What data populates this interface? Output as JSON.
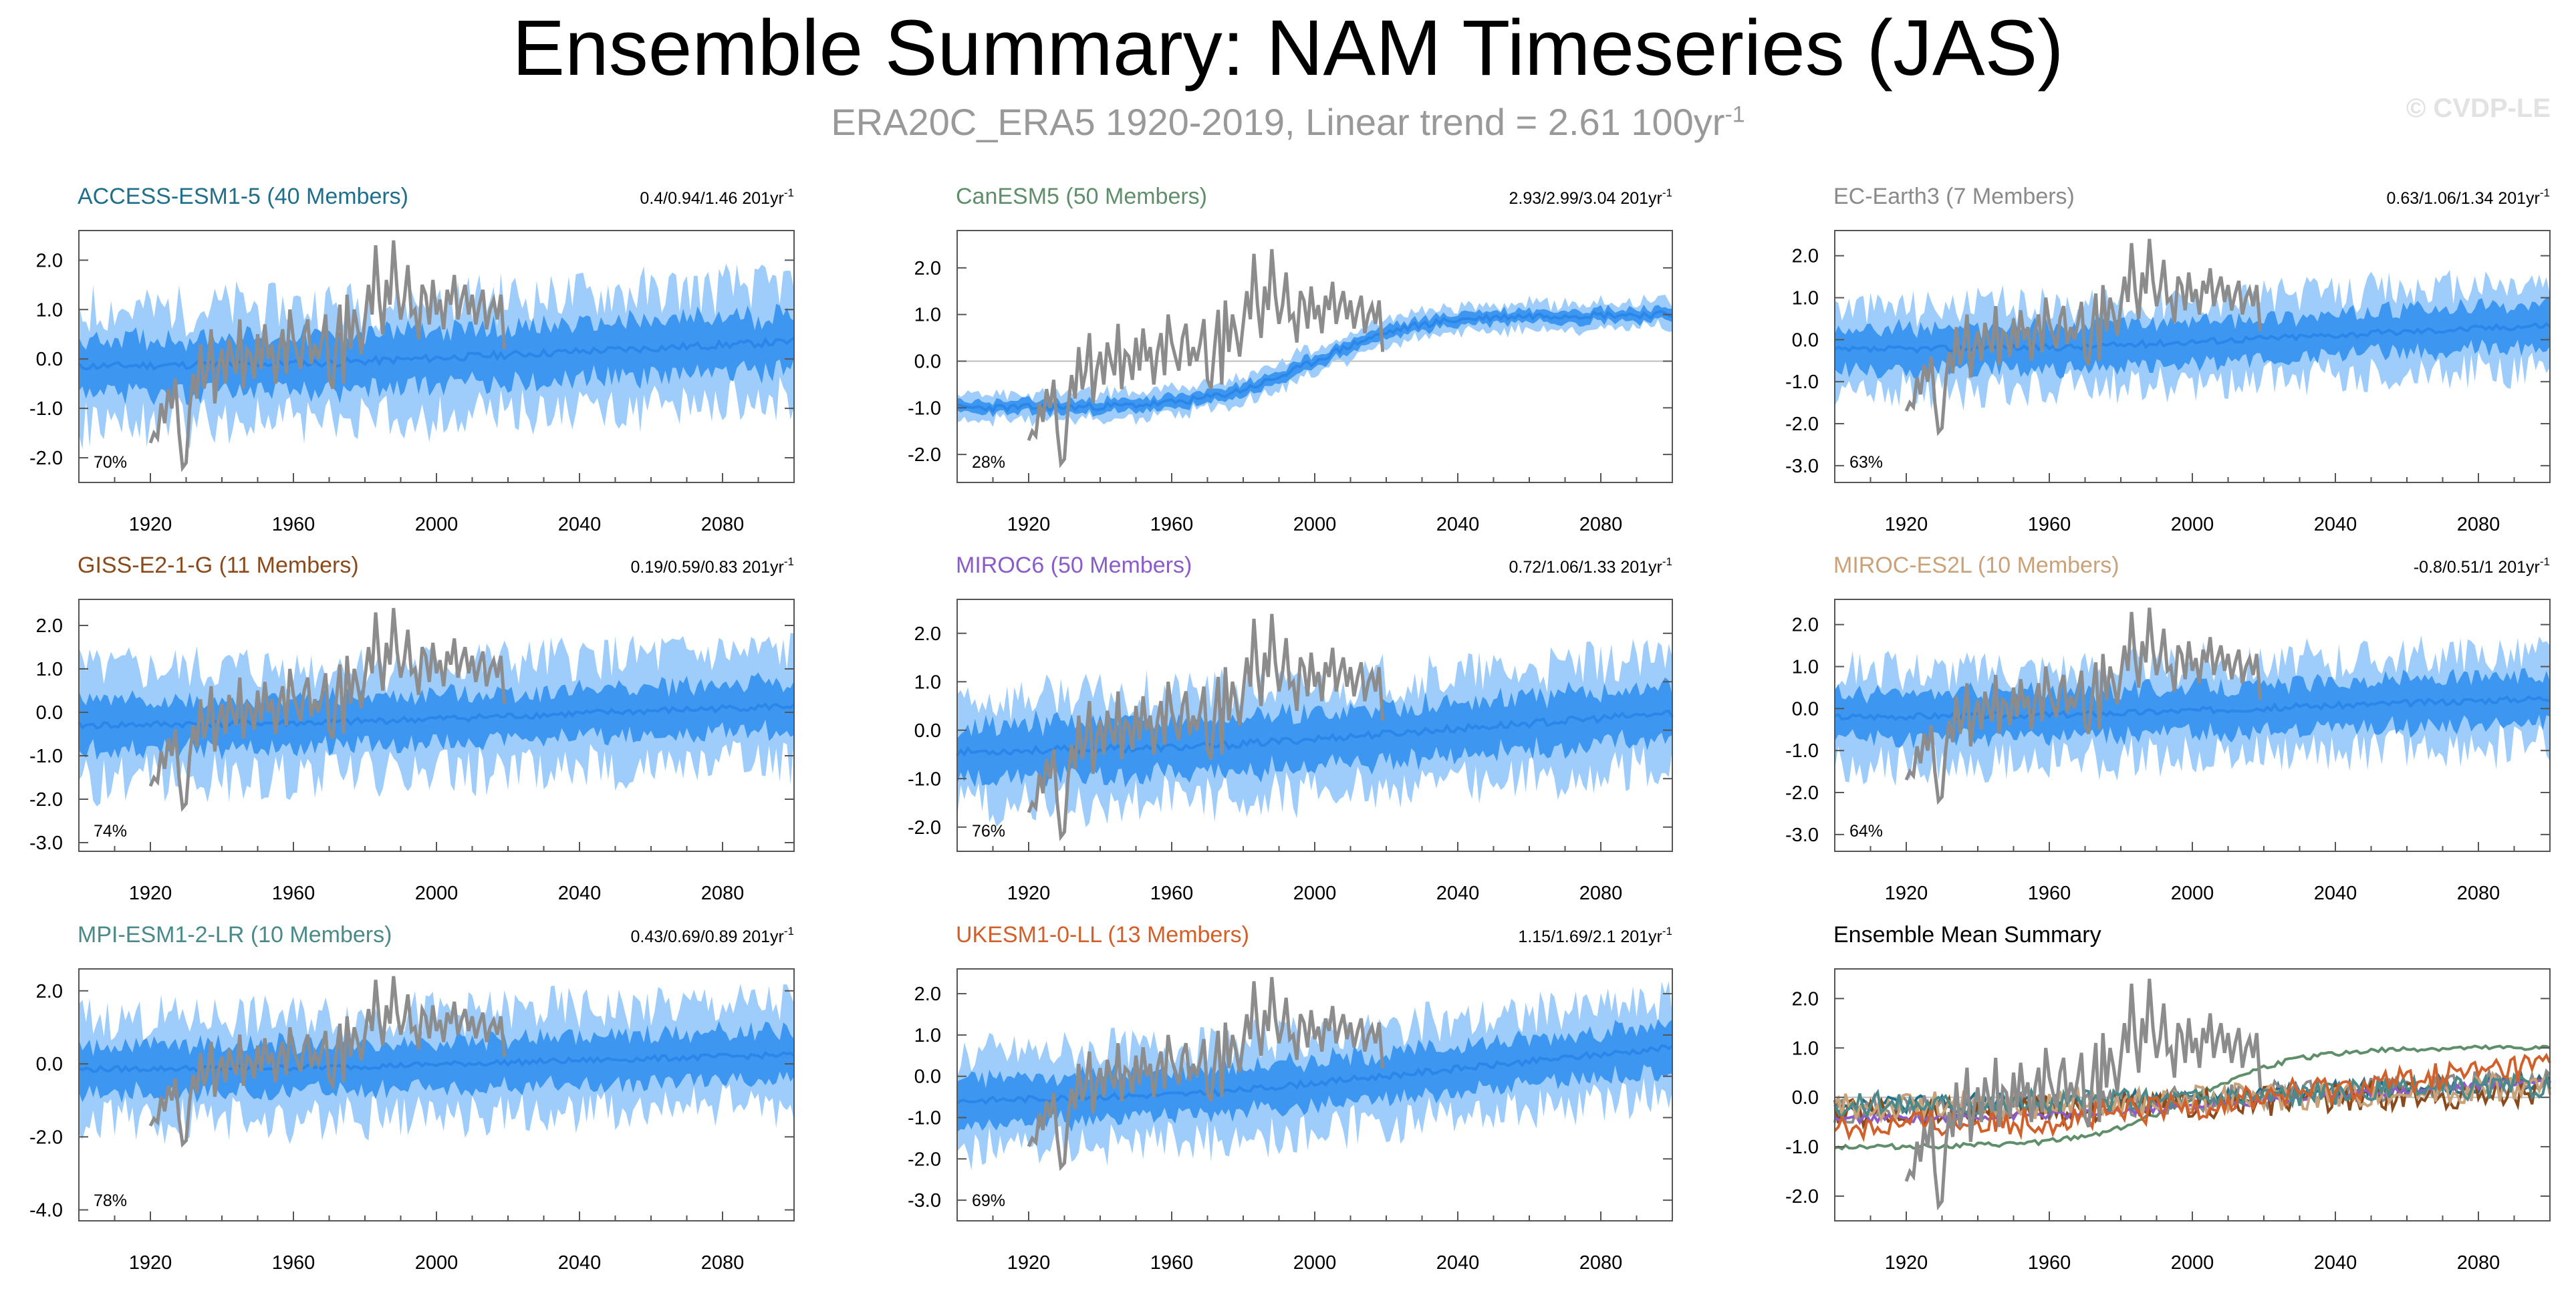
{
  "page": {
    "title": "Ensemble Summary: NAM Timeseries (JAS)",
    "subtitle_main": "ERA20C_ERA5 1920-2019, Linear trend = 2.61 100yr",
    "subtitle_sup": "-1",
    "copyright": "© CVDP-LE"
  },
  "colors": {
    "band_outer": "#9fcdfb",
    "band_inner": "#3d97f0",
    "mean_line": "#2a86e8",
    "obs_line": "#8c8c8c",
    "zero_line": "#bdbdbd",
    "axis": "#555555"
  },
  "chart_data": [
    {
      "type": "line",
      "title": "ACCESS-ESM1-5 (40 Members)",
      "title_color": "#1f6e8c",
      "trend": "0.4/0.94/1.46 201yr",
      "trend_unit_sup": "-1",
      "percent": "70%",
      "ylim": [
        -2.5,
        2.6
      ],
      "yticks": [
        -2,
        -1,
        0,
        1,
        2
      ],
      "xlim": [
        1900,
        2100
      ],
      "xticks": [
        1920,
        1960,
        2000,
        2040,
        2080
      ],
      "xlabels": [
        "1920",
        "1960",
        "2000",
        "2040",
        "2080"
      ],
      "mean_start": -0.15,
      "mean_end": 0.35,
      "inner_halfwidth": 0.55,
      "outer_halfwidth": 1.15,
      "seed": 11
    },
    {
      "type": "line",
      "title": "CanESM5 (50 Members)",
      "title_color": "#5f8e6a",
      "trend": "2.93/2.99/3.04 201yr",
      "trend_unit_sup": "-1",
      "percent": "28%",
      "ylim": [
        -2.6,
        2.8
      ],
      "yticks": [
        -2,
        -1,
        0,
        1,
        2
      ],
      "xlim": [
        1900,
        2100
      ],
      "xticks": [
        1920,
        1960,
        2000,
        2040,
        2080
      ],
      "xlabels": [
        "1920",
        "1960",
        "2000",
        "2040",
        "2080"
      ],
      "mean_start": -1.0,
      "mean_end": 1.0,
      "sigmoid": true,
      "inner_halfwidth": 0.13,
      "outer_halfwidth": 0.28,
      "seed": 23
    },
    {
      "type": "line",
      "title": "EC-Earth3 (7 Members)",
      "title_color": "#8a8a8a",
      "trend": "0.63/1.06/1.34 201yr",
      "trend_unit_sup": "-1",
      "percent": "63%",
      "ylim": [
        -3.4,
        2.6
      ],
      "yticks": [
        -3,
        -2,
        -1,
        0,
        1,
        2
      ],
      "xlim": [
        1900,
        2100
      ],
      "xticks": [
        1920,
        1960,
        2000,
        2040,
        2080
      ],
      "xlabels": [
        "1920",
        "1960",
        "2000",
        "2040",
        "2080"
      ],
      "mean_start": -0.25,
      "mean_end": 0.35,
      "inner_halfwidth": 0.5,
      "outer_halfwidth": 1.0,
      "seed": 37
    },
    {
      "type": "line",
      "title": "GISS-E2-1-G (11 Members)",
      "title_color": "#8b4a1b",
      "trend": "0.19/0.59/0.83 201yr",
      "trend_unit_sup": "-1",
      "percent": "74%",
      "ylim": [
        -3.2,
        2.6
      ],
      "yticks": [
        -3,
        -2,
        -1,
        0,
        1,
        2
      ],
      "xlim": [
        1900,
        2100
      ],
      "xticks": [
        1920,
        1960,
        2000,
        2040,
        2080
      ],
      "xlabels": [
        "1920",
        "1960",
        "2000",
        "2040",
        "2080"
      ],
      "mean_start": -0.3,
      "mean_end": 0.15,
      "inner_halfwidth": 0.55,
      "outer_halfwidth": 1.25,
      "seed": 41
    },
    {
      "type": "line",
      "title": "MIROC6 (50 Members)",
      "title_color": "#8a5cc9",
      "trend": "0.72/1.06/1.33 201yr",
      "trend_unit_sup": "-1",
      "percent": "76%",
      "ylim": [
        -2.5,
        2.7
      ],
      "yticks": [
        -2,
        -1,
        0,
        1,
        2
      ],
      "xlim": [
        1900,
        2100
      ],
      "xticks": [
        1920,
        1960,
        2000,
        2040,
        2080
      ],
      "xlabels": [
        "1920",
        "1960",
        "2000",
        "2040",
        "2080"
      ],
      "mean_start": -0.45,
      "mean_end": 0.35,
      "inner_halfwidth": 0.55,
      "outer_halfwidth": 1.1,
      "seed": 53
    },
    {
      "type": "line",
      "title": "MIROC-ES2L (10 Members)",
      "title_color": "#c9a27a",
      "trend": "-0.8/0.51/1 201yr",
      "trend_unit_sup": "-1",
      "percent": "64%",
      "ylim": [
        -3.4,
        2.6
      ],
      "yticks": [
        -3,
        -2,
        -1,
        0,
        1,
        2
      ],
      "xlim": [
        1900,
        2100
      ],
      "xticks": [
        1920,
        1960,
        2000,
        2040,
        2080
      ],
      "xlabels": [
        "1920",
        "1960",
        "2000",
        "2040",
        "2080"
      ],
      "mean_start": -0.2,
      "mean_end": 0.25,
      "inner_halfwidth": 0.55,
      "outer_halfwidth": 1.1,
      "seed": 67
    },
    {
      "type": "line",
      "title": "MPI-ESM1-2-LR (10 Members)",
      "title_color": "#4a8a8a",
      "trend": "0.43/0.69/0.89 201yr",
      "trend_unit_sup": "-1",
      "percent": "78%",
      "ylim": [
        -4.3,
        2.6
      ],
      "yticks": [
        -4,
        -2,
        0,
        2
      ],
      "xlim": [
        1900,
        2100
      ],
      "xticks": [
        1920,
        1960,
        2000,
        2040,
        2080
      ],
      "xlabels": [
        "1920",
        "1960",
        "2000",
        "2040",
        "2080"
      ],
      "mean_start": -0.15,
      "mean_end": 0.25,
      "inner_halfwidth": 0.65,
      "outer_halfwidth": 1.4,
      "seed": 79
    },
    {
      "type": "line",
      "title": "UKESM1-0-LL (13 Members)",
      "title_color": "#d2602a",
      "trend": "1.15/1.69/2.1 201yr",
      "trend_unit_sup": "-1",
      "percent": "69%",
      "ylim": [
        -3.5,
        2.6
      ],
      "yticks": [
        -3,
        -2,
        -1,
        0,
        1,
        2
      ],
      "xlim": [
        1900,
        2100
      ],
      "xticks": [
        1920,
        1960,
        2000,
        2040,
        2080
      ],
      "xlabels": [
        "1920",
        "1960",
        "2000",
        "2040",
        "2080"
      ],
      "mean_start": -0.6,
      "mean_end": 0.7,
      "inner_halfwidth": 0.55,
      "outer_halfwidth": 1.15,
      "seed": 83
    },
    {
      "type": "line",
      "title": "Ensemble Mean Summary",
      "title_color": "#000000",
      "trend": "",
      "trend_unit_sup": "",
      "percent": "",
      "ylim": [
        -2.5,
        2.6
      ],
      "yticks": [
        -2,
        -1,
        0,
        1,
        2
      ],
      "xlim": [
        1900,
        2100
      ],
      "xticks": [
        1920,
        1960,
        2000,
        2040,
        2080
      ],
      "xlabels": [
        "1920",
        "1960",
        "2000",
        "2040",
        "2080"
      ],
      "summary": true,
      "series": [
        {
          "name": "ACCESS-ESM1-5",
          "color": "#1f6e8c",
          "start": -0.15,
          "end": 0.35,
          "noise": 0.18
        },
        {
          "name": "CanESM5",
          "color": "#5f8e6a",
          "start": -1.0,
          "end": 1.0,
          "noise": 0.05,
          "sigmoid": true
        },
        {
          "name": "EC-Earth3",
          "color": "#8a8a8a",
          "start": -0.25,
          "end": 0.35,
          "noise": 0.28
        },
        {
          "name": "GISS-E2-1-G",
          "color": "#8b4a1b",
          "start": -0.3,
          "end": 0.15,
          "noise": 0.3
        },
        {
          "name": "MIROC6",
          "color": "#8a5cc9",
          "start": -0.45,
          "end": 0.35,
          "noise": 0.08
        },
        {
          "name": "MIROC-ES2L",
          "color": "#c9a27a",
          "start": -0.2,
          "end": 0.25,
          "noise": 0.3
        },
        {
          "name": "MPI-ESM1-2-LR",
          "color": "#4a8a8a",
          "start": -0.15,
          "end": 0.25,
          "noise": 0.25
        },
        {
          "name": "UKESM1-0-LL",
          "color": "#d2602a",
          "start": -0.6,
          "end": 0.7,
          "noise": 0.3
        }
      ]
    }
  ],
  "observations": {
    "name": "ERA20C_ERA5",
    "years": [
      1920,
      1921,
      1922,
      1923,
      1924,
      1925,
      1926,
      1927,
      1928,
      1929,
      1930,
      1931,
      1932,
      1933,
      1934,
      1935,
      1936,
      1937,
      1938,
      1939,
      1940,
      1941,
      1942,
      1943,
      1944,
      1945,
      1946,
      1947,
      1948,
      1949,
      1950,
      1951,
      1952,
      1953,
      1954,
      1955,
      1956,
      1957,
      1958,
      1959,
      1960,
      1961,
      1962,
      1963,
      1964,
      1965,
      1966,
      1967,
      1968,
      1969,
      1970,
      1971,
      1972,
      1973,
      1974,
      1975,
      1976,
      1977,
      1978,
      1979,
      1980,
      1981,
      1982,
      1983,
      1984,
      1985,
      1986,
      1987,
      1988,
      1989,
      1990,
      1991,
      1992,
      1993,
      1994,
      1995,
      1996,
      1997,
      1998,
      1999,
      2000,
      2001,
      2002,
      2003,
      2004,
      2005,
      2006,
      2007,
      2008,
      2009,
      2010,
      2011,
      2012,
      2013,
      2014,
      2015,
      2016,
      2017,
      2018,
      2019
    ],
    "values": [
      -1.7,
      -1.5,
      -1.6,
      -0.9,
      -1.3,
      -0.6,
      -1.0,
      -0.4,
      -1.5,
      -2.2,
      -2.1,
      -1.0,
      -0.3,
      -0.8,
      0.3,
      -0.6,
      -0.2,
      0.6,
      -0.9,
      -0.2,
      0.2,
      -0.5,
      0.4,
      0.0,
      -0.3,
      0.8,
      -0.6,
      0.2,
      0.1,
      -0.4,
      0.5,
      -0.2,
      0.7,
      0.0,
      0.3,
      -0.5,
      0.2,
      0.6,
      -0.3,
      1.0,
      0.4,
      0.1,
      -0.2,
      0.5,
      0.8,
      -0.1,
      0.3,
      0.0,
      0.4,
      0.9,
      -0.4,
      -0.6,
      0.3,
      1.1,
      -0.5,
      1.3,
      0.2,
      1.0,
      0.6,
      0.1,
      0.8,
      1.5,
      0.9,
      2.3,
      1.2,
      0.5,
      1.6,
      1.1,
      2.4,
      1.4,
      0.8,
      1.2,
      1.9,
      0.9,
      1.0,
      0.4,
      1.5,
      1.3,
      0.7,
      1.6,
      0.9,
      1.2,
      0.6,
      1.4,
      1.1,
      1.7,
      0.8,
      1.2,
      1.5,
      0.9,
      1.3,
      0.7,
      1.1,
      1.4,
      0.6,
      1.0,
      1.2,
      0.8,
      1.3,
      0.2
    ]
  }
}
